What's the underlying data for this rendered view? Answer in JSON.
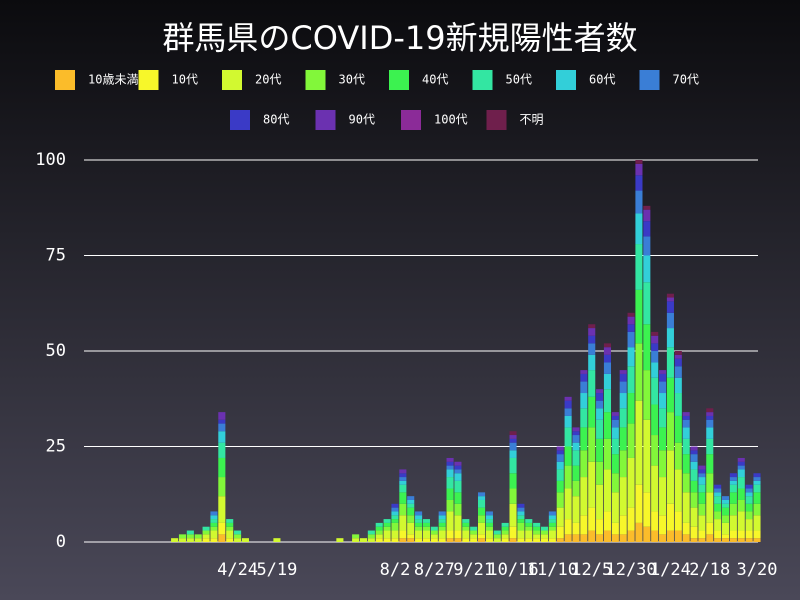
{
  "chart_data": {
    "type": "stacked_bar",
    "title": "群馬県のCOVID-19新規陽性者数",
    "categories": [
      null,
      null,
      null,
      null,
      null,
      null,
      null,
      null,
      null,
      null,
      null,
      "4/24",
      null,
      null,
      null,
      null,
      "5/19",
      null,
      null,
      null,
      null,
      null,
      null,
      null,
      null,
      null,
      null,
      null,
      null,
      null,
      null,
      "8/2",
      null,
      null,
      null,
      null,
      "8/27",
      null,
      null,
      null,
      null,
      "9/21",
      null,
      null,
      null,
      null,
      "10/16",
      null,
      null,
      null,
      null,
      "11/10",
      null,
      null,
      null,
      null,
      "12/5",
      null,
      null,
      null,
      null,
      "12/30",
      null,
      null,
      null,
      null,
      "1/24",
      null,
      null,
      null,
      null,
      "2/18",
      null,
      null,
      null,
      null,
      null,
      "3/20"
    ],
    "ylim": [
      0,
      100
    ],
    "yticks": [
      0,
      25,
      50,
      75,
      100
    ],
    "grid": true,
    "series": [
      {
        "name": "10歳未満",
        "color": "#fbbc2a",
        "values": [
          0,
          0,
          0,
          0,
          0,
          0,
          0,
          0,
          0,
          2,
          0,
          0,
          0,
          0,
          0,
          0,
          0,
          0,
          0,
          0,
          0,
          0,
          0,
          0,
          0,
          0,
          0,
          0,
          0,
          0,
          0,
          0,
          1,
          1,
          0,
          0,
          0,
          0,
          1,
          1,
          0,
          0,
          1,
          0,
          0,
          0,
          1,
          0,
          0,
          0,
          0,
          0,
          1,
          2,
          2,
          2,
          3,
          2,
          3,
          2,
          2,
          3,
          5,
          4,
          3,
          2,
          3,
          3,
          2,
          1,
          1,
          2,
          1,
          1,
          1,
          1,
          1,
          1
        ]
      },
      {
        "name": "10代",
        "color": "#f7f72a",
        "values": [
          0,
          0,
          0,
          0,
          0,
          0,
          0,
          1,
          1,
          3,
          1,
          0,
          0,
          0,
          0,
          0,
          0,
          0,
          0,
          0,
          0,
          0,
          0,
          0,
          0,
          0,
          0,
          0,
          0,
          1,
          1,
          1,
          2,
          1,
          1,
          1,
          1,
          1,
          2,
          2,
          1,
          1,
          1,
          1,
          0,
          1,
          3,
          1,
          1,
          1,
          1,
          1,
          3,
          4,
          3,
          5,
          6,
          4,
          5,
          3,
          5,
          6,
          10,
          9,
          5,
          5,
          7,
          5,
          3,
          3,
          2,
          3,
          2,
          1,
          2,
          2,
          2,
          2
        ]
      },
      {
        "name": "20代",
        "color": "#d2f930",
        "values": [
          0,
          0,
          0,
          1,
          1,
          1,
          1,
          1,
          2,
          7,
          2,
          1,
          1,
          0,
          0,
          0,
          1,
          0,
          0,
          0,
          0,
          0,
          0,
          0,
          1,
          0,
          1,
          1,
          1,
          1,
          2,
          2,
          4,
          3,
          2,
          2,
          1,
          2,
          5,
          4,
          2,
          1,
          3,
          2,
          1,
          1,
          6,
          2,
          2,
          1,
          1,
          2,
          5,
          8,
          7,
          10,
          12,
          9,
          11,
          8,
          10,
          13,
          22,
          19,
          12,
          10,
          14,
          11,
          8,
          5,
          4,
          8,
          3,
          3,
          4,
          5,
          3,
          4
        ]
      },
      {
        "name": "30代",
        "color": "#82f73a",
        "values": [
          0,
          0,
          0,
          0,
          1,
          1,
          1,
          1,
          1,
          5,
          1,
          1,
          0,
          0,
          0,
          0,
          0,
          0,
          0,
          0,
          0,
          0,
          0,
          0,
          0,
          0,
          1,
          0,
          1,
          1,
          1,
          2,
          3,
          2,
          1,
          1,
          1,
          1,
          3,
          3,
          1,
          1,
          2,
          1,
          1,
          1,
          4,
          2,
          1,
          1,
          1,
          1,
          4,
          6,
          4,
          7,
          9,
          6,
          8,
          5,
          7,
          9,
          15,
          13,
          8,
          7,
          10,
          7,
          5,
          4,
          3,
          5,
          2,
          2,
          3,
          3,
          2,
          3
        ]
      },
      {
        "name": "40代",
        "color": "#3cf250",
        "values": [
          0,
          0,
          0,
          0,
          0,
          0,
          0,
          0,
          1,
          5,
          1,
          0,
          0,
          0,
          0,
          0,
          0,
          0,
          0,
          0,
          0,
          0,
          0,
          0,
          0,
          0,
          0,
          0,
          0,
          1,
          1,
          1,
          3,
          2,
          1,
          1,
          0,
          1,
          3,
          3,
          1,
          0,
          2,
          1,
          0,
          1,
          4,
          1,
          1,
          1,
          0,
          1,
          3,
          5,
          4,
          6,
          8,
          6,
          7,
          5,
          6,
          8,
          14,
          12,
          8,
          6,
          9,
          7,
          5,
          3,
          3,
          5,
          2,
          2,
          3,
          3,
          2,
          3
        ]
      },
      {
        "name": "50代",
        "color": "#33e6a2",
        "values": [
          0,
          0,
          0,
          0,
          0,
          1,
          0,
          1,
          1,
          4,
          1,
          1,
          0,
          0,
          0,
          0,
          0,
          0,
          0,
          0,
          0,
          0,
          0,
          0,
          0,
          0,
          0,
          0,
          1,
          1,
          1,
          1,
          2,
          1,
          1,
          1,
          1,
          1,
          3,
          3,
          1,
          1,
          2,
          1,
          1,
          1,
          4,
          1,
          1,
          1,
          1,
          1,
          3,
          5,
          4,
          5,
          7,
          5,
          6,
          4,
          5,
          7,
          12,
          11,
          7,
          5,
          8,
          6,
          4,
          3,
          2,
          4,
          2,
          1,
          2,
          3,
          2,
          2
        ]
      },
      {
        "name": "60代",
        "color": "#32cfd9",
        "values": [
          0,
          0,
          0,
          0,
          0,
          0,
          0,
          0,
          1,
          3,
          0,
          0,
          0,
          0,
          0,
          0,
          0,
          0,
          0,
          0,
          0,
          0,
          0,
          0,
          0,
          0,
          0,
          0,
          0,
          0,
          0,
          1,
          1,
          1,
          1,
          0,
          0,
          1,
          2,
          2,
          0,
          0,
          1,
          1,
          0,
          0,
          2,
          1,
          0,
          0,
          0,
          1,
          2,
          3,
          2,
          4,
          4,
          3,
          4,
          3,
          4,
          5,
          8,
          7,
          4,
          4,
          5,
          4,
          3,
          2,
          2,
          3,
          1,
          1,
          1,
          2,
          1,
          1
        ]
      },
      {
        "name": "70代",
        "color": "#3a7ed6",
        "values": [
          0,
          0,
          0,
          0,
          0,
          0,
          0,
          0,
          1,
          2,
          0,
          0,
          0,
          0,
          0,
          0,
          0,
          0,
          0,
          0,
          0,
          0,
          0,
          0,
          0,
          0,
          0,
          0,
          0,
          0,
          0,
          1,
          1,
          1,
          1,
          0,
          0,
          1,
          1,
          1,
          0,
          0,
          1,
          1,
          0,
          0,
          2,
          1,
          0,
          0,
          0,
          1,
          2,
          2,
          2,
          3,
          3,
          2,
          3,
          2,
          3,
          4,
          6,
          5,
          3,
          3,
          4,
          3,
          2,
          2,
          1,
          2,
          1,
          1,
          1,
          1,
          1,
          1
        ]
      },
      {
        "name": "80代",
        "color": "#3a3ac6",
        "values": [
          0,
          0,
          0,
          0,
          0,
          0,
          0,
          0,
          0,
          1,
          0,
          0,
          0,
          0,
          0,
          0,
          0,
          0,
          0,
          0,
          0,
          0,
          0,
          0,
          0,
          0,
          0,
          0,
          0,
          0,
          0,
          1,
          1,
          0,
          0,
          0,
          0,
          0,
          1,
          1,
          0,
          0,
          0,
          0,
          0,
          0,
          1,
          1,
          0,
          0,
          0,
          0,
          1,
          2,
          1,
          2,
          2,
          2,
          2,
          1,
          2,
          2,
          4,
          4,
          2,
          2,
          3,
          2,
          1,
          1,
          1,
          1,
          1,
          0,
          1,
          1,
          1,
          1
        ]
      },
      {
        "name": "90代",
        "color": "#6b31b0",
        "values": [
          0,
          0,
          0,
          0,
          0,
          0,
          0,
          0,
          0,
          2,
          0,
          0,
          0,
          0,
          0,
          0,
          0,
          0,
          0,
          0,
          0,
          0,
          0,
          0,
          0,
          0,
          0,
          0,
          0,
          0,
          0,
          0,
          1,
          0,
          0,
          0,
          0,
          0,
          1,
          1,
          0,
          0,
          0,
          0,
          0,
          0,
          1,
          0,
          0,
          0,
          0,
          0,
          1,
          1,
          1,
          1,
          2,
          1,
          2,
          1,
          1,
          2,
          3,
          3,
          2,
          1,
          1,
          1,
          1,
          1,
          1,
          1,
          0,
          0,
          0,
          1,
          0,
          0
        ]
      },
      {
        "name": "100代",
        "color": "#8b2b98",
        "values": [
          0,
          0,
          0,
          0,
          0,
          0,
          0,
          0,
          0,
          0,
          0,
          0,
          0,
          0,
          0,
          0,
          0,
          0,
          0,
          0,
          0,
          0,
          0,
          0,
          0,
          0,
          0,
          0,
          0,
          0,
          0,
          0,
          0,
          0,
          0,
          0,
          0,
          0,
          0,
          0,
          0,
          0,
          0,
          0,
          0,
          0,
          0,
          0,
          0,
          0,
          0,
          0,
          0,
          0,
          0,
          0,
          0,
          0,
          0,
          0,
          0,
          0,
          0,
          0,
          0,
          0,
          0,
          0,
          0,
          0,
          0,
          0,
          0,
          0,
          0,
          0,
          0,
          0
        ]
      },
      {
        "name": "不明",
        "color": "#6f1f4c",
        "values": [
          0,
          0,
          0,
          0,
          0,
          0,
          0,
          0,
          0,
          0,
          0,
          0,
          0,
          0,
          0,
          0,
          0,
          0,
          0,
          0,
          0,
          0,
          0,
          0,
          0,
          0,
          0,
          0,
          0,
          0,
          0,
          0,
          0,
          0,
          0,
          0,
          0,
          0,
          0,
          0,
          0,
          0,
          0,
          0,
          0,
          0,
          1,
          0,
          0,
          0,
          0,
          0,
          0,
          0,
          0,
          0,
          1,
          0,
          1,
          0,
          0,
          1,
          1,
          1,
          1,
          0,
          1,
          1,
          0,
          0,
          0,
          1,
          0,
          0,
          0,
          0,
          0,
          0
        ]
      }
    ]
  }
}
